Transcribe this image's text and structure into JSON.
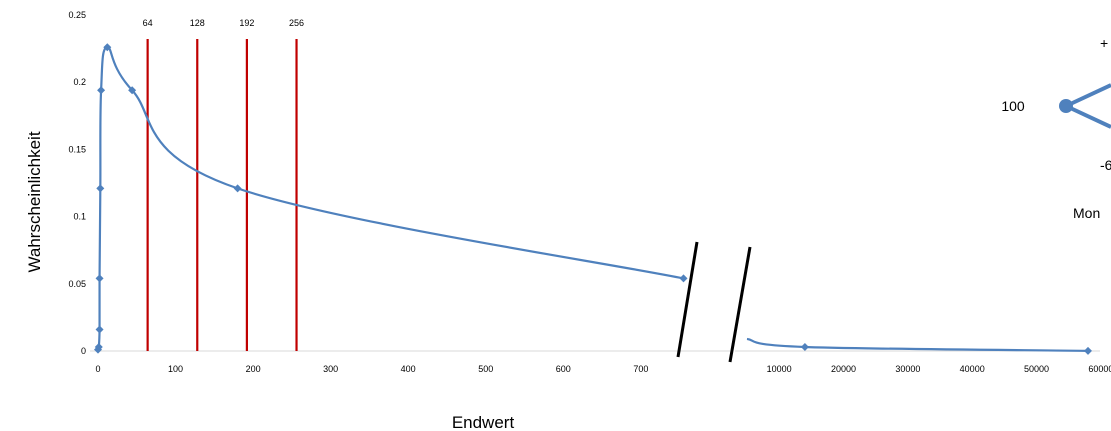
{
  "chart_data": {
    "type": "line",
    "title": "",
    "xlabel": "Endwert",
    "ylabel": "Wahrscheinlichkeit",
    "ylim": [
      0,
      0.25
    ],
    "y_ticks": [
      "0",
      "0.05",
      "0.1",
      "0.15",
      "0.2",
      "0.25"
    ],
    "segment_left": {
      "xlim": [
        0,
        800
      ],
      "x_ticks": [
        "0",
        "100",
        "200",
        "300",
        "400",
        "500",
        "600",
        "700"
      ],
      "points": [
        {
          "x": 0,
          "y": 0.001
        },
        {
          "x": 1,
          "y": 0.003
        },
        {
          "x": 2,
          "y": 0.016
        },
        {
          "x": 2,
          "y": 0.054
        },
        {
          "x": 3,
          "y": 0.121
        },
        {
          "x": 4,
          "y": 0.194
        },
        {
          "x": 12,
          "y": 0.226
        },
        {
          "x": 44,
          "y": 0.194
        },
        {
          "x": 180,
          "y": 0.121
        },
        {
          "x": 755,
          "y": 0.054
        }
      ]
    },
    "segment_right": {
      "xlim": [
        5000,
        60000
      ],
      "x_ticks": [
        "10000",
        "20000",
        "30000",
        "40000",
        "50000",
        "60000"
      ],
      "points": [
        {
          "x": 5000,
          "y": 0.009
        },
        {
          "x": 14000,
          "y": 0.003
        },
        {
          "x": 58000,
          "y": 0.0001
        }
      ]
    },
    "vertical_markers": [
      {
        "x": 64,
        "label": "64"
      },
      {
        "x": 128,
        "label": "128"
      },
      {
        "x": 192,
        "label": "192"
      },
      {
        "x": 256,
        "label": "256"
      }
    ],
    "colors": {
      "series": "#4f81bd",
      "markers": "#c00000",
      "axis": "#d9d9d9",
      "break": "#000000"
    }
  },
  "side_diagram": {
    "start_label": "100",
    "up_label": "+",
    "down_label": "-6",
    "caption": "Mon"
  }
}
